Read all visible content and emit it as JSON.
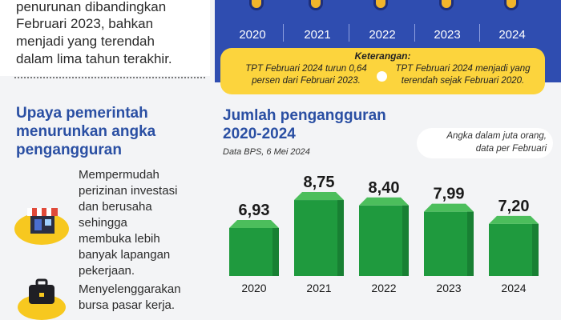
{
  "intro": {
    "lines": [
      "penurunan dibandingkan",
      "Februari 2023, bahkan",
      "menjadi yang terendah",
      "dalam lima tahun terakhir."
    ]
  },
  "upaya": {
    "title_lines": [
      "Upaya pemerintah",
      "menurunkan angka",
      "pengangguran"
    ],
    "point1_lines": [
      "Mempermudah",
      "perizinan investasi",
      "dan berusaha",
      "sehingga",
      "membuka lebih",
      "banyak lapangan",
      "pekerjaan."
    ],
    "point2_lines": [
      "Menyelenggarakan",
      "bursa pasar kerja."
    ]
  },
  "band": {
    "years": [
      "2020",
      "2021",
      "2022",
      "2023",
      "2024"
    ],
    "dot_color": "#f2b52b",
    "bg_color": "#2f4db0"
  },
  "keterangan": {
    "title": "Keterangan:",
    "left_lines": [
      "TPT Februari 2024 turun 0,64",
      "persen dari Februari 2023."
    ],
    "right_lines": [
      "TPT Februari 2024 menjadi yang",
      "terendah sejak Februari 2020."
    ]
  },
  "chart_panel": {
    "title_lines": [
      "Jumlah pengangguran",
      "2020-2024"
    ],
    "source": "Data BPS, 6 Mei 2024",
    "note_lines": [
      "Angka dalam juta orang,",
      "data per Februari"
    ]
  },
  "chart_data": {
    "type": "bar",
    "title": "Jumlah pengangguran 2020-2024",
    "categories": [
      "2020",
      "2021",
      "2022",
      "2023",
      "2024"
    ],
    "values": [
      6.93,
      8.75,
      8.4,
      7.99,
      7.2
    ],
    "value_labels": [
      "6,93",
      "8,75",
      "8,40",
      "7,99",
      "7,20"
    ],
    "unit": "juta orang",
    "bar_color": "#1f9a3e",
    "bar_top_color": "#4cbe5c",
    "bar_side_color": "#136b2a"
  }
}
